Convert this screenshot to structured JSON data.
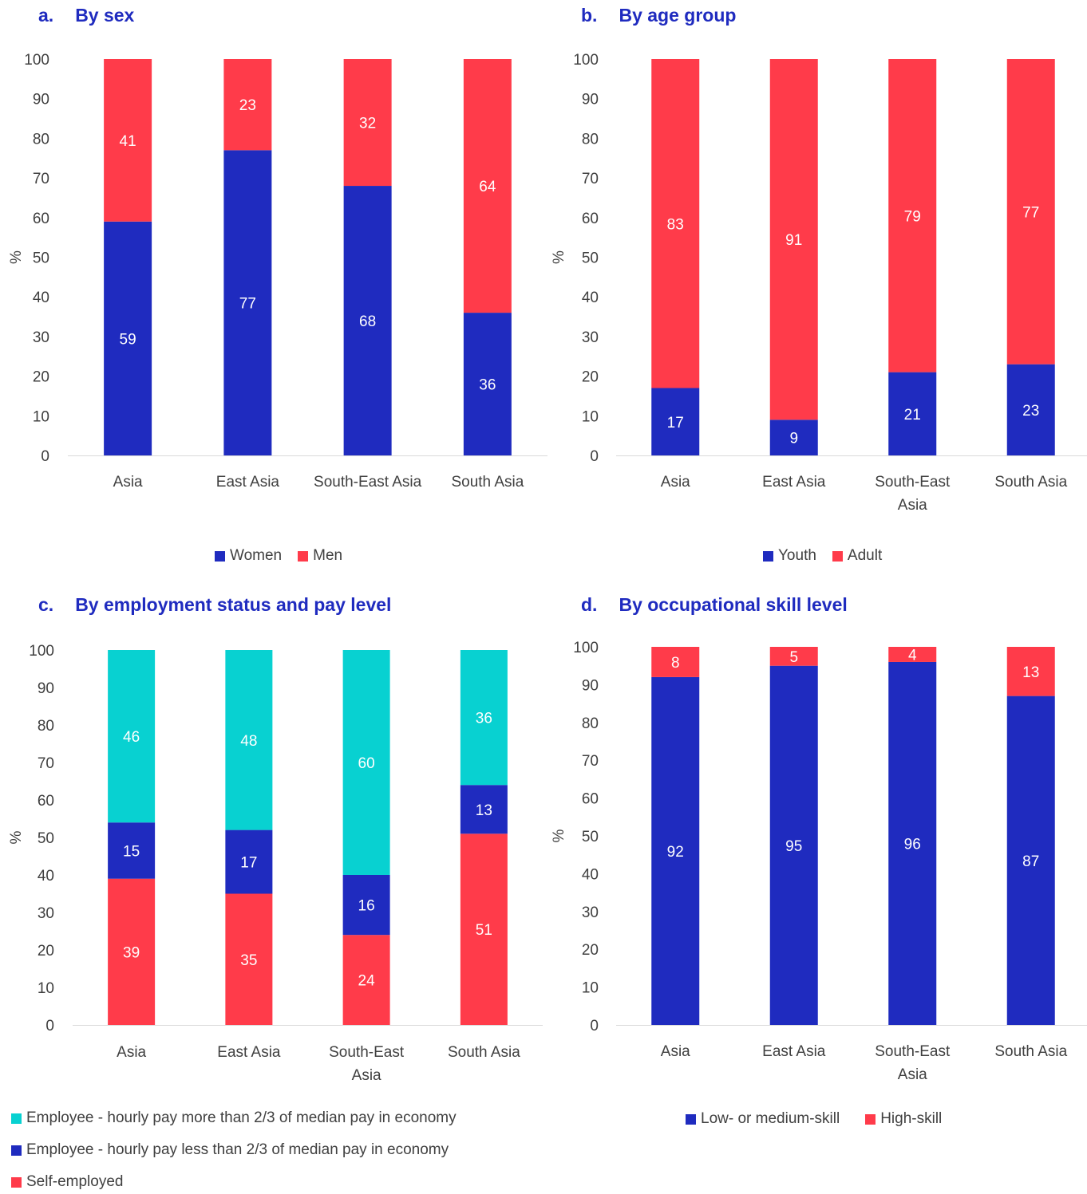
{
  "colors": {
    "title": "#1f2bbf",
    "blue": "#1f2bbf",
    "red": "#ff3b4a",
    "teal": "#08d1d1"
  },
  "panels": [
    {
      "letter": "a.",
      "title": "By sex"
    },
    {
      "letter": "b.",
      "title": "By age group"
    },
    {
      "letter": "c.",
      "title": "By employment status and pay level"
    },
    {
      "letter": "d.",
      "title": "By occupational skill level"
    }
  ],
  "chart_data": [
    {
      "type": "bar",
      "stacked": true,
      "title": "By sex",
      "ylabel": "%",
      "ylim": [
        0,
        100
      ],
      "yticks": [
        0,
        10,
        20,
        30,
        40,
        50,
        60,
        70,
        80,
        90,
        100
      ],
      "categories": [
        "Asia",
        "East Asia",
        "South-East Asia",
        "South Asia"
      ],
      "series": [
        {
          "name": "Women",
          "color": "#1f2bbf",
          "values": [
            59,
            77,
            68,
            36
          ]
        },
        {
          "name": "Men",
          "color": "#ff3b4a",
          "values": [
            41,
            23,
            32,
            64
          ]
        }
      ],
      "legend": "bottom"
    },
    {
      "type": "bar",
      "stacked": true,
      "title": "By age group",
      "ylabel": "%",
      "ylim": [
        0,
        100
      ],
      "yticks": [
        0,
        10,
        20,
        30,
        40,
        50,
        60,
        70,
        80,
        90,
        100
      ],
      "categories": [
        "Asia",
        "East Asia",
        "South-East Asia",
        "South Asia"
      ],
      "series": [
        {
          "name": "Youth",
          "color": "#1f2bbf",
          "values": [
            17,
            9,
            21,
            23
          ]
        },
        {
          "name": "Adult",
          "color": "#ff3b4a",
          "values": [
            83,
            91,
            79,
            77
          ]
        }
      ],
      "legend": "bottom"
    },
    {
      "type": "bar",
      "stacked": true,
      "title": "By employment status and pay level",
      "ylabel": "%",
      "ylim": [
        0,
        100
      ],
      "yticks": [
        0,
        10,
        20,
        30,
        40,
        50,
        60,
        70,
        80,
        90,
        100
      ],
      "categories": [
        "Asia",
        "East Asia",
        "South-East Asia",
        "South Asia"
      ],
      "series": [
        {
          "name": "Self-employed",
          "color": "#ff3b4a",
          "values": [
            39,
            35,
            24,
            51
          ]
        },
        {
          "name": "Employee - hourly pay less than 2/3 of median pay in economy",
          "color": "#1f2bbf",
          "values": [
            15,
            17,
            16,
            13
          ]
        },
        {
          "name": "Employee - hourly pay more than 2/3 of median pay in economy",
          "color": "#08d1d1",
          "values": [
            46,
            48,
            60,
            36
          ]
        }
      ],
      "legend": "bottom-left"
    },
    {
      "type": "bar",
      "stacked": true,
      "title": "By occupational skill level",
      "ylabel": "%",
      "ylim": [
        0,
        100
      ],
      "yticks": [
        0,
        10,
        20,
        30,
        40,
        50,
        60,
        70,
        80,
        90,
        100
      ],
      "categories": [
        "Asia",
        "East Asia",
        "South-East Asia",
        "South Asia"
      ],
      "series": [
        {
          "name": "Low- or medium-skill",
          "color": "#1f2bbf",
          "values": [
            92,
            95,
            96,
            87
          ]
        },
        {
          "name": "High-skill",
          "color": "#ff3b4a",
          "values": [
            8,
            5,
            4,
            13
          ]
        }
      ],
      "legend": "bottom"
    }
  ]
}
